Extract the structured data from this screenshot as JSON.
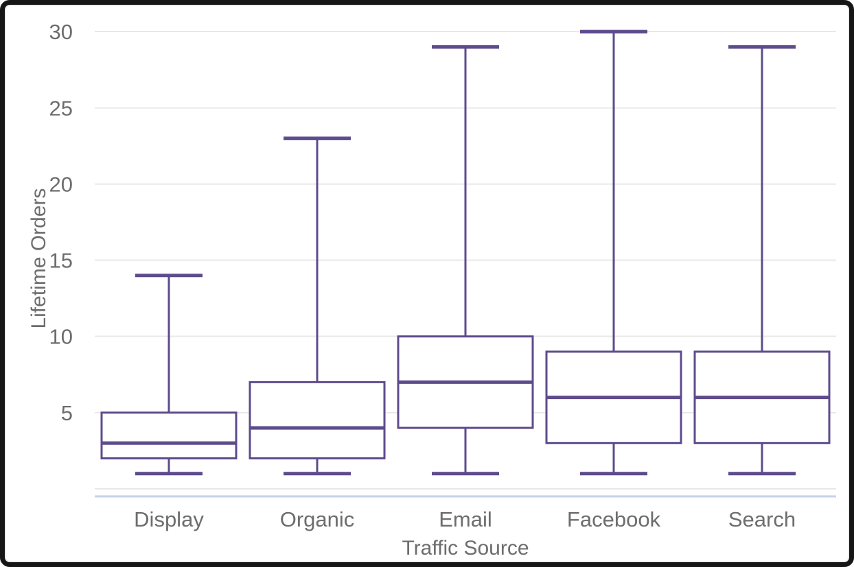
{
  "window": {
    "background": "#ffffff",
    "frame_color": "#161616"
  },
  "chart_data": {
    "type": "boxplot",
    "title": "",
    "xlabel": "Traffic Source",
    "ylabel": "Lifetime Orders",
    "categories": [
      "Display",
      "Organic",
      "Email",
      "Facebook",
      "Search"
    ],
    "series": [
      {
        "name": "Lifetime Orders",
        "stats": [
          {
            "category": "Display",
            "min": 1,
            "q1": 2,
            "median": 3,
            "q3": 5,
            "max": 14
          },
          {
            "category": "Organic",
            "min": 1,
            "q1": 2,
            "median": 4,
            "q3": 7,
            "max": 23
          },
          {
            "category": "Email",
            "min": 1,
            "q1": 4,
            "median": 7,
            "q3": 10,
            "max": 29
          },
          {
            "category": "Facebook",
            "min": 1,
            "q1": 3,
            "median": 6,
            "q3": 9,
            "max": 30
          },
          {
            "category": "Search",
            "min": 1,
            "q1": 3,
            "median": 6,
            "q3": 9,
            "max": 29
          }
        ]
      }
    ],
    "y_ticks": [
      5,
      10,
      15,
      20,
      25,
      30
    ],
    "y_gridlines": [
      0,
      5,
      10,
      15,
      20,
      25,
      30
    ],
    "ylim": [
      -0.5,
      30.6
    ],
    "grid": true,
    "legend_position": "none",
    "colors": {
      "box_stroke": "#5e4b8c",
      "box_fill": "#ffffff",
      "gridline": "#e8e8e8",
      "axis_line": "#c6d2e9",
      "text": "#6d6d6d"
    }
  }
}
